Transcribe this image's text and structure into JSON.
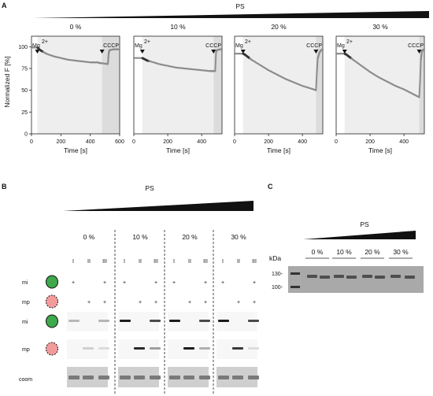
{
  "panels": {
    "A": {
      "letter": "A",
      "title": "PS",
      "ylabel": "Normalized F [%]",
      "xlabel": "Time [s]",
      "additions": [
        "Mg",
        "2+",
        "CCCP"
      ],
      "yticks": [
        "100",
        "75",
        "50",
        "25",
        "0"
      ],
      "chart_data": [
        {
          "type": "scatter",
          "title": "0 %",
          "xlim": [
            0,
            600
          ],
          "ylim": [
            0,
            112
          ],
          "xticks": [
            "0",
            "200",
            "400",
            "600"
          ],
          "x": [
            0,
            40,
            60,
            80,
            100,
            150,
            200,
            250,
            300,
            350,
            400,
            450,
            470,
            480,
            520,
            525,
            530,
            560,
            590
          ],
          "y": [
            99,
            99,
            96,
            94,
            92,
            89,
            87,
            85,
            84,
            83,
            82,
            82,
            81,
            81,
            80,
            92,
            96,
            97,
            97
          ]
        },
        {
          "type": "scatter",
          "title": "10 %",
          "xlim": [
            0,
            520
          ],
          "ylim": [
            0,
            112
          ],
          "xticks": [
            "0",
            "200",
            "400"
          ],
          "x": [
            0,
            50,
            60,
            80,
            100,
            150,
            200,
            250,
            300,
            350,
            400,
            450,
            470,
            480,
            485,
            490,
            510,
            520
          ],
          "y": [
            87,
            87,
            86,
            84,
            83,
            80,
            78,
            76,
            75,
            74,
            73,
            72,
            72,
            72,
            94,
            96,
            97,
            97
          ]
        },
        {
          "type": "scatter",
          "title": "20 %",
          "xlim": [
            0,
            520
          ],
          "ylim": [
            0,
            112
          ],
          "xticks": [
            "0",
            "200",
            "400"
          ],
          "x": [
            0,
            50,
            60,
            80,
            100,
            150,
            200,
            250,
            300,
            350,
            400,
            450,
            480,
            485,
            490,
            500,
            510,
            520
          ],
          "y": [
            92,
            92,
            91,
            88,
            85,
            79,
            73,
            68,
            63,
            59,
            55,
            52,
            50,
            70,
            86,
            93,
            96,
            97
          ]
        },
        {
          "type": "scatter",
          "title": "30 %",
          "xlim": [
            0,
            520
          ],
          "ylim": [
            0,
            112
          ],
          "xticks": [
            "0",
            "200",
            "400"
          ],
          "x": [
            0,
            50,
            60,
            80,
            100,
            150,
            200,
            250,
            300,
            350,
            400,
            450,
            490,
            495,
            500,
            505,
            510,
            520
          ],
          "y": [
            92,
            92,
            91,
            88,
            85,
            78,
            71,
            65,
            60,
            55,
            51,
            46,
            42,
            62,
            85,
            94,
            96,
            97
          ]
        }
      ]
    },
    "B": {
      "letter": "B",
      "title": "PS",
      "concentrations": [
        "0 %",
        "10 %",
        "20 %",
        "30 %"
      ],
      "lanes": [
        "I",
        "II",
        "III"
      ],
      "sample_rows": [
        {
          "label": "mi",
          "marks": [
            "+",
            "",
            "+"
          ]
        },
        {
          "label": "mp",
          "marks": [
            "",
            "+",
            "+"
          ]
        }
      ],
      "blot_rows": [
        "mi",
        "mp",
        "coom"
      ]
    },
    "C": {
      "letter": "C",
      "title": "PS",
      "concentrations": [
        "0 %",
        "10 %",
        "20 %",
        "30 %"
      ],
      "unit": "kDa",
      "markers": [
        "130-",
        "100-"
      ]
    }
  },
  "colors": {
    "data": "#8c8c8c",
    "shade": "#eeeeee",
    "shade_dark": "#dcdcdc",
    "mi_fill": "#3ea84a",
    "mp_fill": "#f29b9b",
    "gel": "#a9a9a9"
  }
}
